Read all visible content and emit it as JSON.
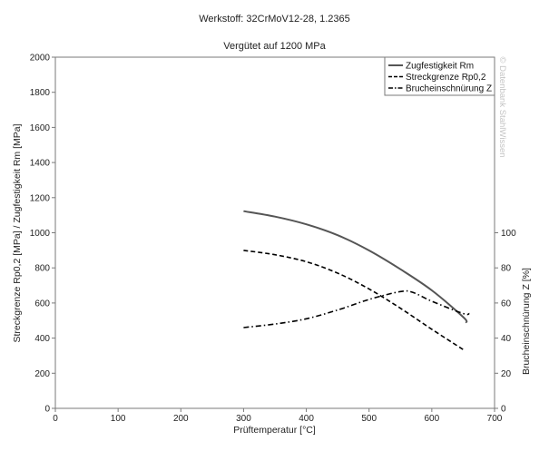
{
  "chart_data": {
    "type": "line",
    "title": "Werkstoff: 32CrMoV12-28, 1.2365",
    "subtitle": "Vergütet auf 1200 MPa",
    "xlabel": "Prüftemperatur [°C]",
    "ylabel": "Streckgrenze Rp0,2 [MPa] / Zugfestigkeit Rm [MPa]",
    "y2label": "Brucheinschnürung Z [%]",
    "xlim": [
      0,
      700
    ],
    "ylim": [
      0,
      2000
    ],
    "y2lim": [
      0,
      100
    ],
    "xticks": [
      0,
      100,
      200,
      300,
      400,
      500,
      600,
      700
    ],
    "yticks": [
      0,
      200,
      400,
      600,
      800,
      1000,
      1200,
      1400,
      1600,
      1800,
      2000
    ],
    "y2ticks": [
      0,
      20,
      40,
      60,
      80,
      100
    ],
    "grid": false,
    "legend_position": "top-right",
    "watermark": "© Datenbank StahlWissen",
    "series": [
      {
        "name": "Zugfestigkeit Rm",
        "axis": "left",
        "style": "solid",
        "color": "#555555",
        "x": [
          300,
          350,
          400,
          450,
          500,
          550,
          600,
          650,
          655
        ],
        "y": [
          1123,
          1092,
          1048,
          986,
          899,
          792,
          672,
          520,
          487
        ]
      },
      {
        "name": "Streckgrenze Rp0,2",
        "axis": "left",
        "style": "dashed",
        "color": "#000000",
        "x": [
          300,
          350,
          400,
          450,
          500,
          550,
          600,
          650
        ],
        "y": [
          900,
          875,
          835,
          770,
          680,
          570,
          450,
          335
        ]
      },
      {
        "name": "Brucheinschnürung Z",
        "axis": "right",
        "style": "dashdot",
        "color": "#000000",
        "x": [
          300,
          350,
          400,
          450,
          500,
          550,
          570,
          600,
          650,
          660
        ],
        "y": [
          46,
          48,
          51,
          56,
          62,
          66.5,
          66,
          61,
          54,
          54
        ]
      }
    ]
  }
}
